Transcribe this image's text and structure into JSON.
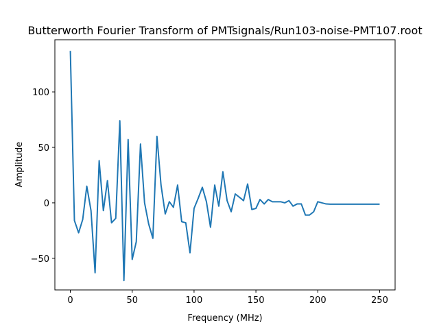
{
  "chart_data": {
    "type": "line",
    "title": "Butterworth Fourier Transform of PMTsignals/Run103-noise-PMT107.root",
    "xlabel": "Frequency (MHz)",
    "ylabel": "Amplitude",
    "xlim": [
      -12.5,
      262.5
    ],
    "ylim": [
      -78.5,
      147
    ],
    "xticks": [
      0,
      50,
      100,
      150,
      200,
      250
    ],
    "xtick_labels": [
      "0",
      "50",
      "100",
      "150",
      "200",
      "250"
    ],
    "yticks": [
      -50,
      0,
      50,
      100
    ],
    "ytick_labels": [
      "−50",
      "0",
      "50",
      "100"
    ],
    "grid": false,
    "color": "#1f77b4",
    "series": [
      {
        "x": [
          0,
          3.3,
          6.7,
          10,
          13.3,
          16.7,
          20,
          23.3,
          26.7,
          30,
          33.3,
          36.7,
          40,
          43.3,
          46.7,
          50,
          53.3,
          56.7,
          60,
          63.3,
          66.7,
          70,
          73.3,
          76.7,
          80,
          83.3,
          86.7,
          90,
          93.3,
          96.7,
          100,
          103.3,
          106.7,
          110,
          113.3,
          116.7,
          120,
          123.3,
          126.7,
          130,
          133.3,
          136.7,
          140,
          143.3,
          146.7,
          150,
          153.3,
          156.7,
          160,
          163.3,
          166.7,
          170,
          173.3,
          176.7,
          180,
          183.3,
          186.7,
          190,
          193.3,
          196.7,
          200,
          203.3,
          206.7,
          210,
          213.3,
          216.7,
          220,
          223.3,
          226.7,
          230,
          233.3,
          236.7,
          240,
          243.3,
          246.7,
          250
        ],
        "y": [
          137,
          -16,
          -27,
          -15,
          15,
          -7,
          -63,
          38,
          -7,
          20,
          -18,
          -14,
          74,
          -70,
          57,
          -51,
          -35,
          53,
          0,
          -19,
          -32,
          60,
          16,
          -10,
          1,
          -4,
          16,
          -17,
          -18,
          -45,
          -5,
          4,
          14,
          1,
          -22,
          16,
          -3,
          28,
          2,
          -8,
          8,
          5,
          2,
          17,
          -6,
          -5,
          3,
          -1,
          3,
          1,
          1,
          1,
          0,
          2,
          -3,
          -1,
          -1,
          -11,
          -11,
          -8,
          1,
          0,
          -1,
          -1.2,
          -1.2,
          -1.2,
          -1.2,
          -1.2,
          -1.2,
          -1.2,
          -1.2,
          -1.2,
          -1.2,
          -1.2,
          -1.2,
          -1.2
        ]
      }
    ]
  }
}
